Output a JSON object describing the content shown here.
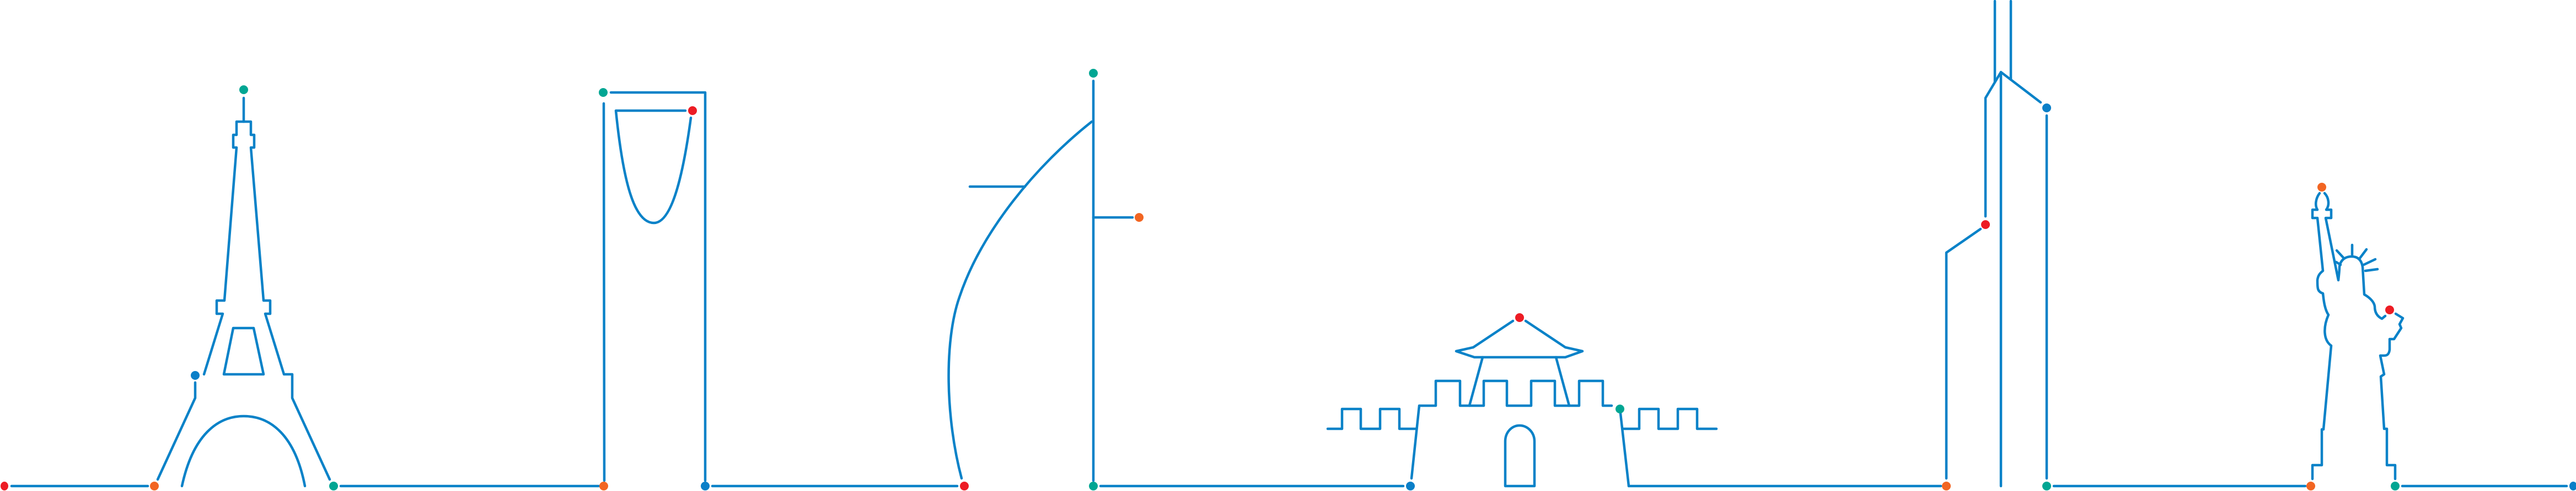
{
  "colors": {
    "line": "#0a82c8",
    "red": "#ed1c24",
    "orange": "#f26522",
    "teal": "#00a693",
    "blue": "#0a7fc8",
    "background": "#ffffff"
  }
}
